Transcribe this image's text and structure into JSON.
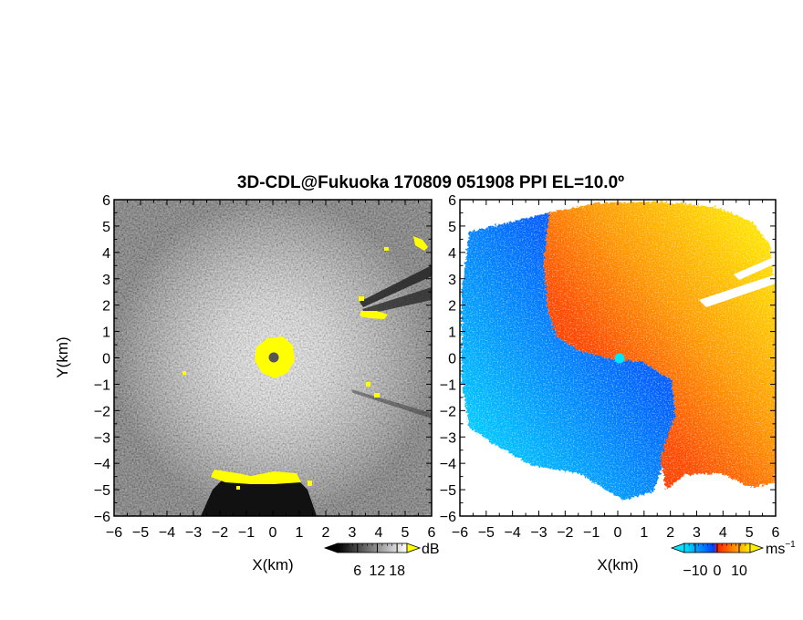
{
  "title": "3D-CDL@Fukuoka 170809 051908 PPI EL=10.0º",
  "chart_data": [
    {
      "type": "heatmap",
      "panel": "signal-to-noise",
      "xlabel": "X(km)",
      "ylabel": "Y(km)",
      "xlim": [
        -6,
        6
      ],
      "ylim": [
        -6,
        6
      ],
      "xticks": [
        "-6",
        "-5",
        "-4",
        "-3",
        "-2",
        "-1",
        "0",
        "1",
        "2",
        "3",
        "4",
        "5",
        "6"
      ],
      "yticks": [
        "6",
        "5",
        "4",
        "3",
        "2",
        "1",
        "0",
        "-1",
        "-2",
        "-3",
        "-4",
        "-5",
        "-6"
      ],
      "colorbar": {
        "unit": "dB",
        "ticks": [
          "6",
          "12",
          "18"
        ],
        "tick_values": [
          6,
          12,
          18
        ],
        "range": [
          0,
          21
        ],
        "colors": [
          "#000000",
          "#ffffff"
        ],
        "over_color": "#ffff00"
      },
      "radar_position": [
        0,
        0
      ],
      "radar_marker_color": "#555555",
      "saturated_regions_color": "#ffff00"
    },
    {
      "type": "heatmap",
      "panel": "doppler-velocity",
      "xlabel": "X(km)",
      "xlim": [
        -6,
        6
      ],
      "ylim": [
        -6,
        6
      ],
      "xticks": [
        "-6",
        "-5",
        "-4",
        "-3",
        "-2",
        "-1",
        "0",
        "1",
        "2",
        "3",
        "4",
        "5",
        "6"
      ],
      "yticks": [
        "6",
        "5",
        "4",
        "3",
        "2",
        "1",
        "0",
        "-1",
        "-2",
        "-3",
        "-4",
        "-5",
        "-6"
      ],
      "colorbar": {
        "unit": "ms",
        "unit_exponent": "−1",
        "ticks": [
          "−10",
          "0",
          "10"
        ],
        "tick_values": [
          -10,
          0,
          10
        ],
        "range": [
          -15,
          15
        ],
        "colors": [
          "#00e5ff",
          "#0055ff",
          "#ff2200",
          "#ffee00"
        ]
      },
      "radar_position": [
        0,
        0
      ],
      "radar_marker_color": "#00e5ff"
    }
  ]
}
